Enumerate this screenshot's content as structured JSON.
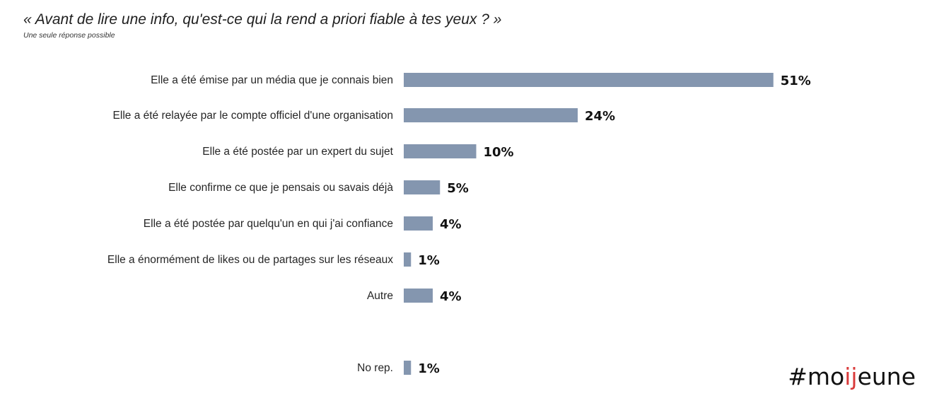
{
  "title": "« Avant de lire une info, qu'est-ce qui la rend a priori fiable à tes yeux ? »",
  "subtitle": "Une seule réponse possible",
  "logo": {
    "prefix": "#mo",
    "accent": "ij",
    "suffix": "eune",
    "accent_color": "#d93a3a"
  },
  "chart_data": {
    "type": "bar",
    "orientation": "horizontal",
    "categories": [
      "Elle a été émise par un média que je connais bien",
      "Elle a été relayée par le compte officiel d'une organisation",
      "Elle a été postée par un expert du sujet",
      "Elle confirme ce que je pensais ou savais déjà",
      "Elle a été postée par quelqu'un en qui j'ai confiance",
      "Elle a énormément de likes ou de partages sur les réseaux",
      "Autre",
      "No rep."
    ],
    "values": [
      51,
      24,
      10,
      5,
      4,
      1,
      4,
      1
    ],
    "value_labels": [
      "51%",
      "24%",
      "10%",
      "5%",
      "4%",
      "1%",
      "4%",
      "1%"
    ],
    "unit": "%",
    "bar_color": "#8496af",
    "grid": false,
    "legend": "none"
  }
}
